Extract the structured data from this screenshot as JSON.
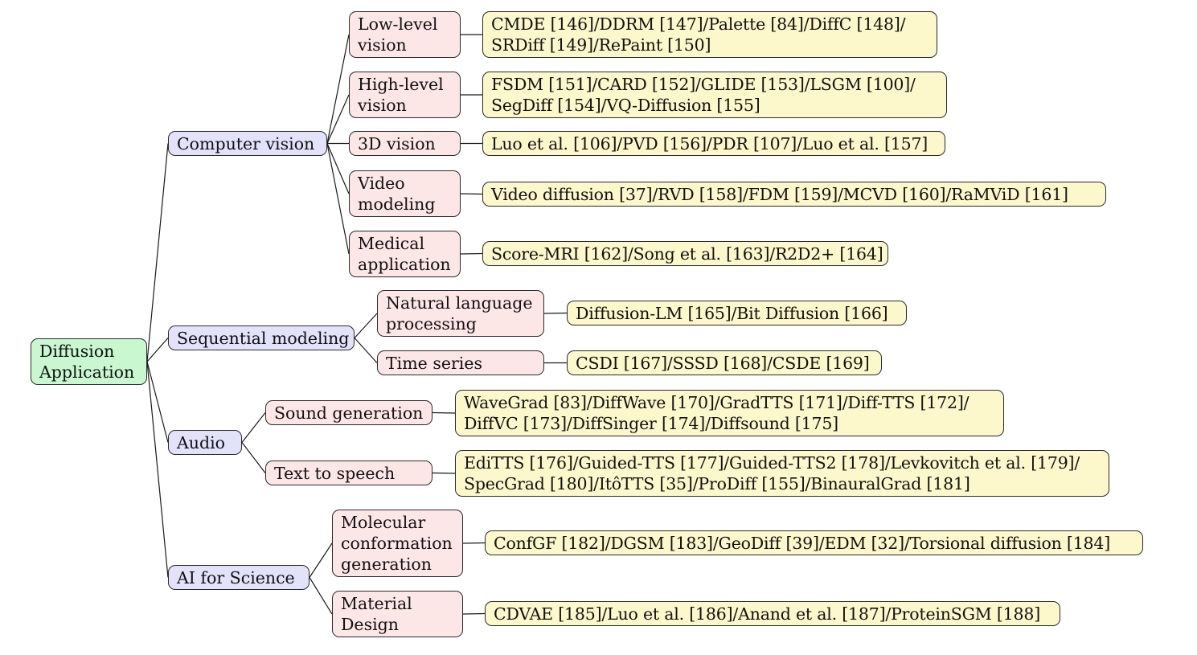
{
  "root": {
    "lines": [
      "Diffusion",
      "Application"
    ]
  },
  "categories": [
    {
      "label": "Computer vision"
    },
    {
      "label": "Sequential modeling"
    },
    {
      "label": "Audio"
    },
    {
      "label": "AI for Science"
    }
  ],
  "subcategories": [
    {
      "lines": [
        "Low-level",
        "vision"
      ]
    },
    {
      "lines": [
        "High-level",
        "vision"
      ]
    },
    {
      "lines": [
        "3D vision"
      ]
    },
    {
      "lines": [
        "Video",
        "modeling"
      ]
    },
    {
      "lines": [
        "Medical",
        "application"
      ]
    },
    {
      "lines": [
        "Natural language",
        "processing"
      ]
    },
    {
      "lines": [
        "Time series"
      ]
    },
    {
      "lines": [
        "Sound generation"
      ]
    },
    {
      "lines": [
        "Text to speech"
      ]
    },
    {
      "lines": [
        "Molecular",
        "conformation",
        "generation"
      ]
    },
    {
      "lines": [
        "Material",
        "Design"
      ]
    }
  ],
  "methods": [
    {
      "lines": [
        "CMDE [146]/DDRM [147]/Palette [84]/DiffC [148]/",
        "SRDiff [149]/RePaint [150]"
      ]
    },
    {
      "lines": [
        "FSDM [151]/CARD [152]/GLIDE [153]/LSGM [100]/",
        "SegDiff [154]/VQ-Diffusion [155]"
      ]
    },
    {
      "lines": [
        "Luo et al. [106]/PVD [156]/PDR [107]/Luo et al. [157]"
      ]
    },
    {
      "lines": [
        "Video diffusion [37]/RVD [158]/FDM [159]/MCVD [160]/RaMViD [161]"
      ]
    },
    {
      "lines": [
        "Score-MRI [162]/Song et al. [163]/R2D2+ [164]"
      ]
    },
    {
      "lines": [
        "Diffusion-LM [165]/Bit Diffusion [166]"
      ]
    },
    {
      "lines": [
        "CSDI [167]/SSSD [168]/CSDE [169]"
      ]
    },
    {
      "lines": [
        "WaveGrad [83]/DiffWave [170]/GradTTS [171]/Diff-TTS [172]/",
        "DiffVC [173]/DiffSinger [174]/Diffsound [175]"
      ]
    },
    {
      "lines": [
        "EdiTTS [176]/Guided-TTS [177]/Guided-TTS2 [178]/Levkovitch et al. [179]/",
        "SpecGrad [180]/ItôTTS [35]/ProDiff [155]/BinauralGrad [181]"
      ]
    },
    {
      "lines": [
        "ConfGF [182]/DGSM [183]/GeoDiff [39]/EDM [32]/Torsional diffusion [184]"
      ]
    },
    {
      "lines": [
        "CDVAE [185]/Luo et al. [186]/Anand et al. [187]/ProteinSGM [188]"
      ]
    }
  ],
  "colors": {
    "root_fill": "#c9f7cf",
    "category_fill": "#e2e2fb",
    "subcategory_fill": "#fde6e6",
    "method_fill": "#fdf7cc",
    "border": "#2a2a2a"
  }
}
